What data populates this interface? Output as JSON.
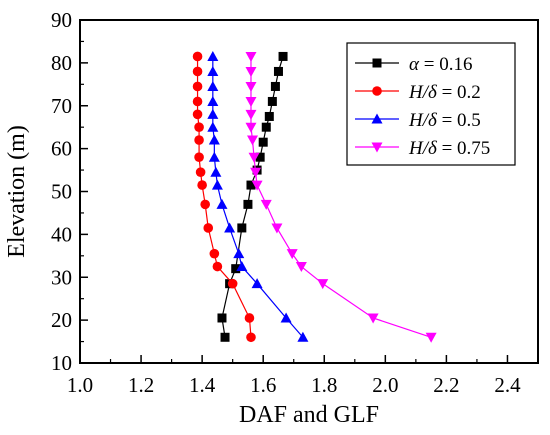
{
  "chart_data": {
    "type": "line",
    "xlabel": "DAF and GLF",
    "ylabel": "Elevation (m)",
    "xlim": [
      1.0,
      2.5
    ],
    "ylim": [
      10,
      90
    ],
    "xticks": [
      "1.0",
      "1.2",
      "1.4",
      "1.6",
      "1.8",
      "2.0",
      "2.2",
      "2.4"
    ],
    "yticks": [
      "10",
      "20",
      "30",
      "40",
      "50",
      "60",
      "70",
      "80",
      "90"
    ],
    "legend_position": "top-right",
    "series": [
      {
        "name_prefix": "α",
        "name_suffix": " = 0.16",
        "color": "#000000",
        "marker": "square",
        "x": [
          1.665,
          1.65,
          1.64,
          1.63,
          1.62,
          1.61,
          1.6,
          1.59,
          1.58,
          1.56,
          1.55,
          1.53,
          1.51,
          1.49,
          1.465,
          1.475
        ],
        "y": [
          81.5,
          78,
          74.5,
          71,
          67.5,
          65,
          61.5,
          58,
          55,
          51.5,
          47,
          41.5,
          32,
          28.5,
          20.5,
          16
        ]
      },
      {
        "name_prefix": "H/δ",
        "name_suffix": " = 0.2",
        "color": "#ff0000",
        "marker": "circle",
        "x": [
          1.385,
          1.385,
          1.385,
          1.385,
          1.385,
          1.39,
          1.39,
          1.39,
          1.395,
          1.4,
          1.41,
          1.42,
          1.44,
          1.45,
          1.5,
          1.555,
          1.56
        ],
        "y": [
          81.5,
          78,
          74.5,
          71,
          68,
          65,
          62,
          58,
          54.5,
          51.5,
          47,
          41.5,
          35.5,
          32.5,
          28.5,
          20.5,
          16
        ]
      },
      {
        "name_prefix": "H/δ",
        "name_suffix": " = 0.5",
        "color": "#0000ff",
        "marker": "triangle-up",
        "x": [
          1.435,
          1.435,
          1.435,
          1.435,
          1.435,
          1.435,
          1.44,
          1.44,
          1.445,
          1.45,
          1.465,
          1.49,
          1.52,
          1.53,
          1.58,
          1.675,
          1.73
        ],
        "y": [
          81.5,
          78,
          74.5,
          71,
          68,
          65,
          62,
          58,
          54.5,
          51.5,
          47,
          41.5,
          35.5,
          32.5,
          28.5,
          20.5,
          16
        ]
      },
      {
        "name_prefix": "H/δ",
        "name_suffix": " = 0.75",
        "color": "#ff00ff",
        "marker": "triangle-down",
        "x": [
          1.56,
          1.56,
          1.56,
          1.56,
          1.56,
          1.56,
          1.565,
          1.57,
          1.575,
          1.58,
          1.61,
          1.645,
          1.695,
          1.725,
          1.795,
          1.96,
          2.15
        ],
        "y": [
          81.5,
          78,
          74.5,
          71,
          68,
          65,
          62,
          58,
          54.5,
          51.5,
          47,
          41.5,
          35.5,
          32.5,
          28.5,
          20.5,
          16
        ]
      }
    ]
  }
}
